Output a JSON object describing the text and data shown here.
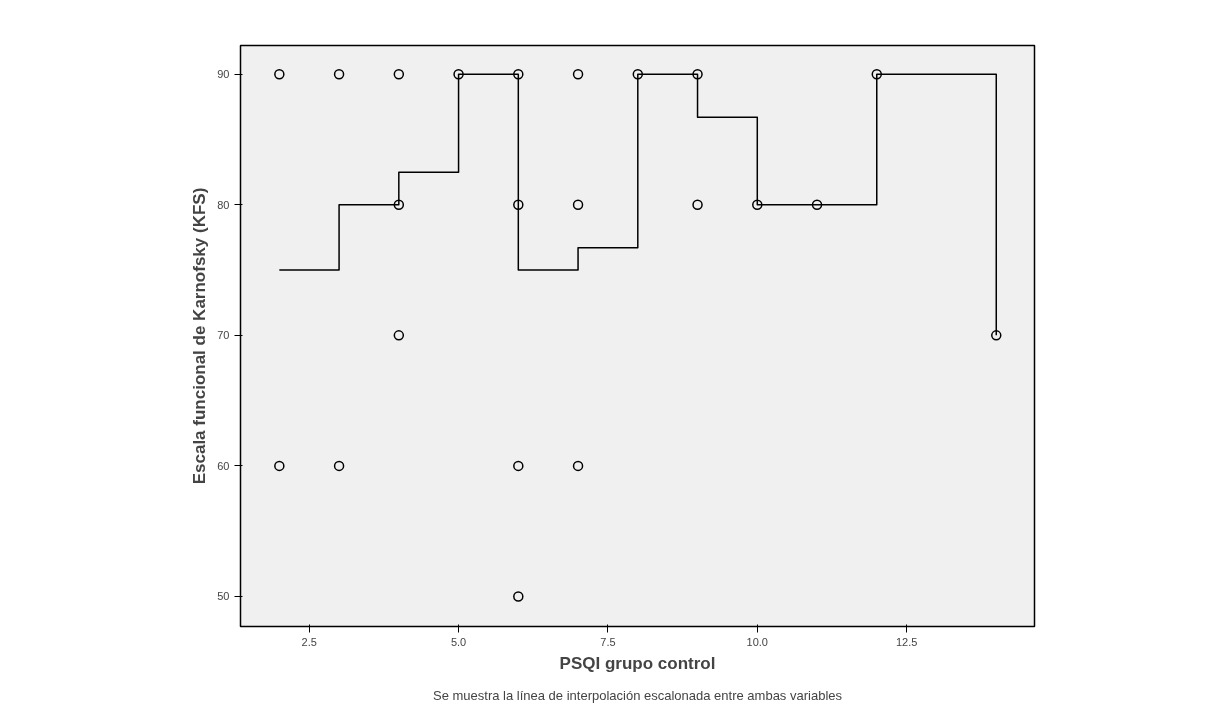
{
  "chart_data": {
    "type": "scatter",
    "xlabel": "PSQI grupo control",
    "ylabel": "Escala funcional de Karnofsky (KFS)",
    "annotations": [
      "Se muestra la línea de interpolación escalonada entre ambas variables"
    ],
    "xlim": [
      1.35,
      14.64
    ],
    "ylim": [
      47.7,
      92.2
    ],
    "xticks": [
      {
        "value": 2.5,
        "label": "2.5"
      },
      {
        "value": 5,
        "label": "5.0"
      },
      {
        "value": 7.5,
        "label": "7.5"
      },
      {
        "value": 10,
        "label": "10.0"
      },
      {
        "value": 12.5,
        "label": "12.5"
      }
    ],
    "yticks": [
      50,
      60,
      70,
      80,
      90
    ],
    "grid": false,
    "series": [
      {
        "marker": "circle",
        "color": "#000000",
        "x": [
          2,
          2,
          3,
          3,
          4,
          4,
          4,
          5,
          6,
          6,
          6,
          6,
          7,
          7,
          7,
          8,
          9,
          9,
          10,
          11,
          12,
          14
        ],
        "values": [
          90,
          60,
          90,
          60,
          90,
          80,
          70,
          90,
          90,
          80,
          60,
          50,
          90,
          80,
          60,
          90,
          90,
          80,
          80,
          80,
          90,
          70
        ]
      },
      {
        "type": "step",
        "color": "#000000",
        "line_style": "solid",
        "marker": "none",
        "x": [
          2,
          3,
          4,
          5,
          6,
          7,
          8,
          9,
          10,
          11,
          12,
          14
        ],
        "values": [
          75,
          80,
          82.5,
          90,
          75,
          76.7,
          90,
          86.7,
          80,
          80,
          90,
          70
        ]
      }
    ]
  }
}
